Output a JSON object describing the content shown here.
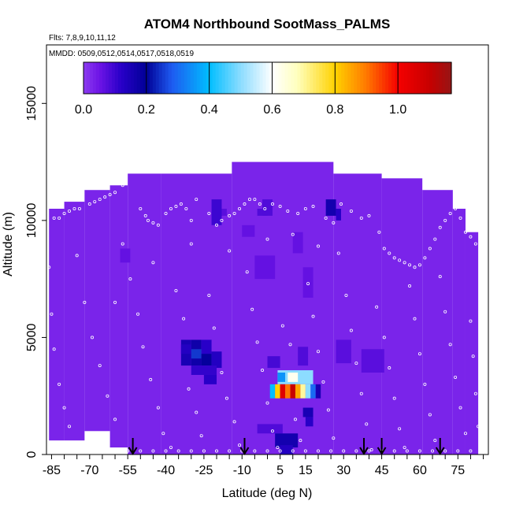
{
  "chart_data": {
    "type": "heatmap",
    "title": "ATOM4 Northbound SootMass_PALMS",
    "flights_label": "Flts: 7,8,9,10,11,12",
    "dates_label": "MMDD: 0509,0512,0514,0517,0518,0519",
    "xlabel": "Latitude (deg N)",
    "ylabel": "Altitude (m)",
    "xlim": [
      -87,
      87
    ],
    "ylim": [
      0,
      17500
    ],
    "xticks": [
      -85,
      -70,
      -55,
      -40,
      -25,
      -10,
      5,
      15,
      30,
      45,
      60,
      75
    ],
    "yticks": [
      0,
      5000,
      10000,
      15000
    ],
    "colorbar": {
      "min": 0.0,
      "max": 1.17,
      "ticks": [
        0.0,
        0.2,
        0.4,
        0.6,
        0.8,
        1.0
      ],
      "tick_labels": [
        "0.0",
        "0.2",
        "0.4",
        "0.6",
        "0.8",
        "1.0"
      ]
    },
    "background_value": 0.03,
    "coverage": [
      {
        "lat": [
          -86,
          -80
        ],
        "alt": [
          600,
          10500
        ]
      },
      {
        "lat": [
          -80,
          -72
        ],
        "alt": [
          600,
          10800
        ]
      },
      {
        "lat": [
          -72,
          -62
        ],
        "alt": [
          1000,
          11300
        ]
      },
      {
        "lat": [
          -62,
          -55
        ],
        "alt": [
          300,
          11500
        ]
      },
      {
        "lat": [
          -55,
          -42
        ],
        "alt": [
          0,
          12000
        ]
      },
      {
        "lat": [
          -42,
          -14
        ],
        "alt": [
          0,
          12000
        ]
      },
      {
        "lat": [
          -14,
          26
        ],
        "alt": [
          0,
          12500
        ]
      },
      {
        "lat": [
          26,
          45
        ],
        "alt": [
          0,
          12000
        ]
      },
      {
        "lat": [
          45,
          61
        ],
        "alt": [
          0,
          11800
        ]
      },
      {
        "lat": [
          61,
          73
        ],
        "alt": [
          0,
          11300
        ]
      },
      {
        "lat": [
          73,
          78
        ],
        "alt": [
          0,
          10500
        ]
      },
      {
        "lat": [
          78,
          83
        ],
        "alt": [
          0,
          9500
        ]
      }
    ],
    "cells": [
      {
        "lat": [
          -34,
          -30
        ],
        "alt": [
          3800,
          4900
        ],
        "v": 0.15
      },
      {
        "lat": [
          -30,
          -26
        ],
        "alt": [
          3800,
          4900
        ],
        "v": 0.17
      },
      {
        "lat": [
          -26,
          -22
        ],
        "alt": [
          3800,
          4900
        ],
        "v": 0.12
      },
      {
        "lat": [
          -34,
          -30
        ],
        "alt": [
          4300,
          4700
        ],
        "v": 0.13
      },
      {
        "lat": [
          -30,
          -26
        ],
        "alt": [
          4100,
          4500
        ],
        "v": 0.25
      },
      {
        "lat": [
          -26,
          -22
        ],
        "alt": [
          3800,
          4300
        ],
        "v": 0.19
      },
      {
        "lat": [
          -22,
          -18
        ],
        "alt": [
          3700,
          4400
        ],
        "v": 0.13
      },
      {
        "lat": [
          -30,
          -20
        ],
        "alt": [
          3400,
          3800
        ],
        "v": 0.11
      },
      {
        "lat": [
          -25,
          -20
        ],
        "alt": [
          3000,
          3400
        ],
        "v": 0.12
      },
      {
        "lat": [
          4,
          18
        ],
        "alt": [
          3000,
          3600
        ],
        "v": 0.5
      },
      {
        "lat": [
          4,
          7
        ],
        "alt": [
          3100,
          3500
        ],
        "v": 0.35
      },
      {
        "lat": [
          8,
          12
        ],
        "alt": [
          3100,
          3500
        ],
        "v": 0.62
      },
      {
        "lat": [
          1,
          3
        ],
        "alt": [
          2400,
          3000
        ],
        "v": 0.4
      },
      {
        "lat": [
          3,
          5
        ],
        "alt": [
          2400,
          3000
        ],
        "v": 0.8
      },
      {
        "lat": [
          5,
          7
        ],
        "alt": [
          2400,
          3000
        ],
        "v": 1.05
      },
      {
        "lat": [
          7,
          9
        ],
        "alt": [
          2400,
          3000
        ],
        "v": 0.9
      },
      {
        "lat": [
          9,
          11
        ],
        "alt": [
          2400,
          3000
        ],
        "v": 1.1
      },
      {
        "lat": [
          11,
          13
        ],
        "alt": [
          2400,
          3000
        ],
        "v": 0.85
      },
      {
        "lat": [
          13,
          15
        ],
        "alt": [
          2400,
          3000
        ],
        "v": 0.7
      },
      {
        "lat": [
          15,
          17
        ],
        "alt": [
          2400,
          3000
        ],
        "v": 0.5
      },
      {
        "lat": [
          17,
          19
        ],
        "alt": [
          2400,
          3000
        ],
        "v": 0.3
      },
      {
        "lat": [
          19,
          21
        ],
        "alt": [
          2400,
          3000
        ],
        "v": 0.15
      },
      {
        "lat": [
          14,
          18
        ],
        "alt": [
          1600,
          2000
        ],
        "v": 0.15
      },
      {
        "lat": [
          15,
          18
        ],
        "alt": [
          1200,
          1600
        ],
        "v": 0.12
      },
      {
        "lat": [
          -4,
          6
        ],
        "alt": [
          900,
          1300
        ],
        "v": 0.08
      },
      {
        "lat": [
          3,
          12
        ],
        "alt": [
          300,
          900
        ],
        "v": 0.16
      },
      {
        "lat": [
          5,
          10
        ],
        "alt": [
          0,
          400
        ],
        "v": 0.13
      },
      {
        "lat": [
          0,
          5
        ],
        "alt": [
          3700,
          4200
        ],
        "v": 0.09
      },
      {
        "lat": [
          12,
          16
        ],
        "alt": [
          3800,
          4600
        ],
        "v": 0.08
      },
      {
        "lat": [
          27,
          33
        ],
        "alt": [
          3900,
          4900
        ],
        "v": 0.07
      },
      {
        "lat": [
          37,
          46
        ],
        "alt": [
          3500,
          4500
        ],
        "v": 0.07
      },
      {
        "lat": [
          -20,
          -16
        ],
        "alt": [
          10200,
          10500
        ],
        "v": 0.07
      },
      {
        "lat": [
          -4,
          0
        ],
        "alt": [
          10200,
          10500
        ],
        "v": 0.08
      },
      {
        "lat": [
          -22,
          -18
        ],
        "alt": [
          9800,
          10900
        ],
        "v": 0.1
      },
      {
        "lat": [
          -2,
          2
        ],
        "alt": [
          10200,
          10900
        ],
        "v": 0.08
      },
      {
        "lat": [
          23,
          27
        ],
        "alt": [
          10200,
          10900
        ],
        "v": 0.16
      },
      {
        "lat": [
          27,
          29
        ],
        "alt": [
          10000,
          10500
        ],
        "v": 0.12
      },
      {
        "lat": [
          -10,
          -5
        ],
        "alt": [
          9300,
          9800
        ],
        "v": 0.06
      },
      {
        "lat": [
          -5,
          3
        ],
        "alt": [
          7500,
          8500
        ],
        "v": 0.06
      },
      {
        "lat": [
          10,
          14
        ],
        "alt": [
          8600,
          9500
        ],
        "v": 0.06
      },
      {
        "lat": [
          14,
          18
        ],
        "alt": [
          6700,
          8000
        ],
        "v": 0.06
      },
      {
        "lat": [
          -58,
          -54
        ],
        "alt": [
          8200,
          8800
        ],
        "v": 0.06
      }
    ],
    "measurement_points": [
      [
        -84,
        10100
      ],
      [
        -82,
        10100
      ],
      [
        -80,
        10300
      ],
      [
        -78,
        10400
      ],
      [
        -76,
        10500
      ],
      [
        -74,
        10500
      ],
      [
        -70,
        10700
      ],
      [
        -68,
        10800
      ],
      [
        -66,
        10900
      ],
      [
        -64,
        11000
      ],
      [
        -62,
        11100
      ],
      [
        -60,
        11200
      ],
      [
        -57,
        11500
      ],
      [
        -50,
        10500
      ],
      [
        -48,
        10200
      ],
      [
        -47,
        10000
      ],
      [
        -45,
        9900
      ],
      [
        -43,
        9800
      ],
      [
        -40,
        10300
      ],
      [
        -38,
        10500
      ],
      [
        -36,
        10600
      ],
      [
        -34,
        10700
      ],
      [
        -32,
        10500
      ],
      [
        -30,
        10000
      ],
      [
        -28,
        10900
      ],
      [
        -23,
        10300
      ],
      [
        -20,
        9800
      ],
      [
        -18,
        10000
      ],
      [
        -15,
        10200
      ],
      [
        -13,
        10300
      ],
      [
        -11,
        10500
      ],
      [
        -9,
        10700
      ],
      [
        -7,
        10900
      ],
      [
        -5,
        10900
      ],
      [
        -3,
        10700
      ],
      [
        -1,
        10500
      ],
      [
        2,
        10700
      ],
      [
        5,
        10600
      ],
      [
        8,
        10400
      ],
      [
        12,
        10300
      ],
      [
        15,
        10500
      ],
      [
        18,
        10600
      ],
      [
        23,
        10100
      ],
      [
        26,
        9900
      ],
      [
        29,
        10700
      ],
      [
        33,
        10400
      ],
      [
        37,
        10100
      ],
      [
        40,
        10200
      ],
      [
        44,
        9500
      ],
      [
        46,
        8800
      ],
      [
        48,
        8600
      ],
      [
        50,
        8400
      ],
      [
        52,
        8300
      ],
      [
        54,
        8200
      ],
      [
        56,
        8100
      ],
      [
        58,
        8000
      ],
      [
        60,
        8100
      ],
      [
        62,
        8400
      ],
      [
        64,
        8800
      ],
      [
        66,
        9200
      ],
      [
        68,
        9700
      ],
      [
        70,
        10000
      ],
      [
        72,
        10300
      ],
      [
        74,
        10500
      ],
      [
        76,
        10100
      ],
      [
        78,
        9500
      ],
      [
        80,
        9300
      ],
      [
        82,
        9000
      ],
      [
        -86,
        8000
      ],
      [
        -85,
        6000
      ],
      [
        -84,
        4500
      ],
      [
        -82,
        3000
      ],
      [
        -80,
        2000
      ],
      [
        -78,
        1200
      ],
      [
        -75,
        8500
      ],
      [
        -72,
        6500
      ],
      [
        -69,
        5000
      ],
      [
        -66,
        3800
      ],
      [
        -63,
        2500
      ],
      [
        -60,
        1500
      ],
      [
        -57,
        9000
      ],
      [
        -54,
        7500
      ],
      [
        -51,
        6000
      ],
      [
        -49,
        4600
      ],
      [
        -46,
        3200
      ],
      [
        -43,
        2000
      ],
      [
        -41,
        900
      ],
      [
        -38,
        300
      ],
      [
        -36,
        7000
      ],
      [
        -33,
        5800
      ],
      [
        -31,
        2800
      ],
      [
        -28,
        1800
      ],
      [
        -26,
        800
      ],
      [
        -23,
        6800
      ],
      [
        -21,
        5400
      ],
      [
        -18,
        3500
      ],
      [
        -16,
        2400
      ],
      [
        -13,
        1400
      ],
      [
        -11,
        400
      ],
      [
        -8,
        7800
      ],
      [
        -6,
        6200
      ],
      [
        -4,
        4800
      ],
      [
        -2,
        3600
      ],
      [
        0,
        2200
      ],
      [
        2,
        1000
      ],
      [
        4,
        300
      ],
      [
        6,
        5500
      ],
      [
        9,
        4700
      ],
      [
        11,
        1500
      ],
      [
        13,
        600
      ],
      [
        16,
        7300
      ],
      [
        18,
        5900
      ],
      [
        20,
        4400
      ],
      [
        22,
        3100
      ],
      [
        24,
        1900
      ],
      [
        26,
        700
      ],
      [
        28,
        8600
      ],
      [
        31,
        6800
      ],
      [
        33,
        5300
      ],
      [
        35,
        3900
      ],
      [
        37,
        2600
      ],
      [
        39,
        1300
      ],
      [
        41,
        200
      ],
      [
        43,
        6300
      ],
      [
        46,
        5000
      ],
      [
        48,
        3700
      ],
      [
        50,
        2400
      ],
      [
        52,
        1100
      ],
      [
        54,
        300
      ],
      [
        56,
        7200
      ],
      [
        58,
        5800
      ],
      [
        60,
        4300
      ],
      [
        62,
        3000
      ],
      [
        64,
        1700
      ],
      [
        66,
        600
      ],
      [
        68,
        7600
      ],
      [
        70,
        6100
      ],
      [
        72,
        4700
      ],
      [
        74,
        3300
      ],
      [
        76,
        2000
      ],
      [
        78,
        900
      ],
      [
        80,
        5700
      ],
      [
        81,
        4200
      ],
      [
        82,
        2600
      ],
      [
        83,
        1200
      ],
      [
        -60,
        6500
      ],
      [
        -45,
        8200
      ],
      [
        -30,
        9000
      ],
      [
        -15,
        8700
      ],
      [
        0,
        9200
      ],
      [
        10,
        9400
      ],
      [
        20,
        8900
      ],
      [
        -55,
        150
      ],
      [
        -50,
        150
      ],
      [
        -45,
        150
      ],
      [
        -40,
        150
      ],
      [
        -35,
        150
      ],
      [
        -30,
        150
      ],
      [
        -25,
        150
      ],
      [
        -20,
        150
      ],
      [
        -15,
        150
      ],
      [
        -10,
        150
      ],
      [
        -5,
        150
      ],
      [
        0,
        150
      ],
      [
        5,
        150
      ],
      [
        10,
        150
      ],
      [
        15,
        150
      ],
      [
        20,
        150
      ],
      [
        25,
        150
      ],
      [
        30,
        150
      ],
      [
        35,
        150
      ],
      [
        40,
        150
      ],
      [
        45,
        150
      ],
      [
        50,
        150
      ],
      [
        55,
        150
      ],
      [
        60,
        150
      ],
      [
        65,
        150
      ],
      [
        70,
        150
      ],
      [
        75,
        150
      ],
      [
        80,
        150
      ]
    ],
    "arrows_lat": [
      -53,
      -9,
      38,
      45,
      68
    ]
  }
}
